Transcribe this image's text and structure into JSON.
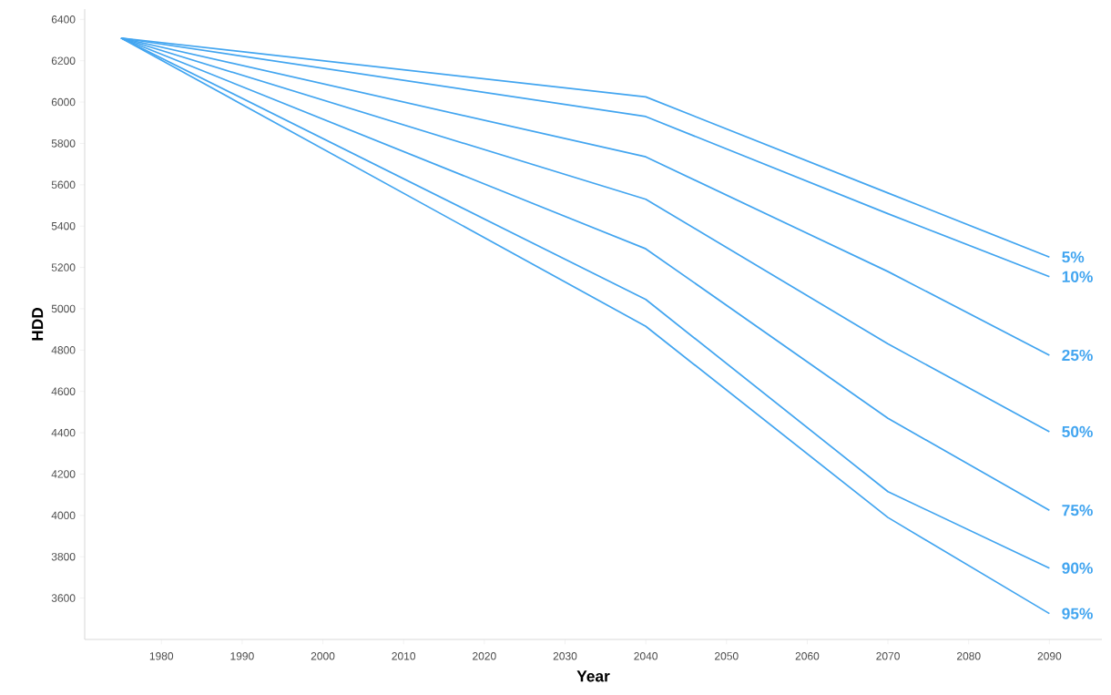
{
  "chart_data": {
    "type": "line",
    "xlabel": "Year",
    "ylabel": "HDD",
    "xlim": [
      1970.5,
      2096.5
    ],
    "ylim": [
      3400,
      6450
    ],
    "xticks": [
      1980,
      1990,
      2000,
      2010,
      2020,
      2030,
      2040,
      2050,
      2060,
      2070,
      2080,
      2090
    ],
    "yticks": [
      3600,
      3800,
      4000,
      4200,
      4400,
      4600,
      4800,
      5000,
      5200,
      5400,
      5600,
      5800,
      6000,
      6200,
      6400
    ],
    "grid": false,
    "legend": false,
    "marker": "none",
    "line_style": "solid",
    "x": [
      1975,
      2040,
      2070,
      2090
    ],
    "series": [
      {
        "name": "5%",
        "color": "#42a5f0",
        "values": [
          6310,
          6025,
          5560,
          5250
        ]
      },
      {
        "name": "10%",
        "color": "#42a5f0",
        "values": [
          6310,
          5930,
          5460,
          5155
        ]
      },
      {
        "name": "25%",
        "color": "#42a5f0",
        "values": [
          6310,
          5735,
          5180,
          4775
        ]
      },
      {
        "name": "50%",
        "color": "#42a5f0",
        "values": [
          6310,
          5530,
          4830,
          4405
        ]
      },
      {
        "name": "75%",
        "color": "#42a5f0",
        "values": [
          6310,
          5290,
          4470,
          4025
        ]
      },
      {
        "name": "90%",
        "color": "#42a5f0",
        "values": [
          6310,
          5045,
          4115,
          3745
        ]
      },
      {
        "name": "95%",
        "color": "#42a5f0",
        "values": [
          6310,
          4915,
          3990,
          3525
        ]
      }
    ]
  }
}
